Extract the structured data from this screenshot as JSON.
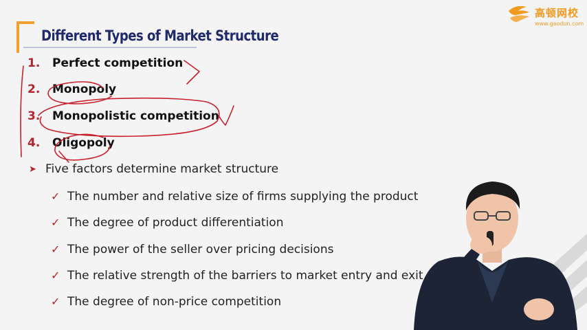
{
  "logo": {
    "name": "高顿网校",
    "url": "www.gaodun.com"
  },
  "slide": {
    "title": "Different Types of Market Structure",
    "numbered_items": [
      {
        "index": "1.",
        "label": "Perfect competition"
      },
      {
        "index": "2.",
        "label": "Monopoly"
      },
      {
        "index": "3.",
        "label": "Monopolistic competition"
      },
      {
        "index": "4.",
        "label": "Oligopoly"
      }
    ],
    "factors_heading": "Five factors determine market structure",
    "factors": [
      "The number and relative size of firms supplying the product",
      "The degree of product differentiation",
      "The power of the seller over pricing decisions",
      "The relative strength of the barriers to market entry and exit",
      "The degree of non-price competition"
    ]
  },
  "colors": {
    "accent_red": "#b2242e",
    "title_navy": "#1f2a6b",
    "bracket_orange": "#f2a12e",
    "logo_orange": "#f29a1f",
    "ink_red": "#c8202d"
  },
  "icons": {
    "arrow_bullet": "triangle-right-icon",
    "check_bullet": "check-icon"
  }
}
